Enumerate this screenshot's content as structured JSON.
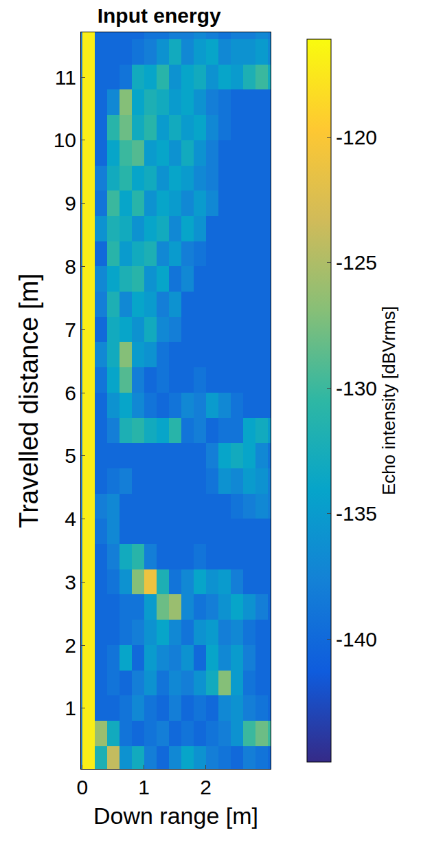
{
  "chart_data": {
    "type": "heatmap",
    "title": "Input energy",
    "x_label": "Down range [m]",
    "y_label": "Travelled distance [m]",
    "x": [
      0.1,
      0.3,
      0.5,
      0.7,
      0.9,
      1.1,
      1.3,
      1.5,
      1.7,
      1.9,
      2.1,
      2.3,
      2.5,
      2.7,
      2.9,
      3.1
    ],
    "y": [
      0.2,
      0.6,
      1.0,
      1.4,
      1.8,
      2.2,
      2.6,
      3.0,
      3.4,
      3.8,
      4.2,
      4.6,
      5.0,
      5.4,
      5.8,
      6.2,
      6.6,
      7.0,
      7.4,
      7.8,
      8.2,
      8.6,
      9.0,
      9.4,
      9.8,
      10.2,
      10.6,
      11.0,
      11.4,
      11.8
    ],
    "z": [
      [
        -117,
        -132,
        -124,
        -136,
        -133,
        -138,
        -140,
        -137,
        -134,
        -136,
        -138,
        -139,
        -140,
        -138,
        -139,
        -140
      ],
      [
        -117,
        -126,
        -133,
        -139,
        -140,
        -139,
        -138,
        -140,
        -139,
        -140,
        -139,
        -138,
        -136,
        -130,
        -128,
        -130
      ],
      [
        -117,
        -140,
        -140,
        -139,
        -137,
        -139,
        -140,
        -138,
        -140,
        -139,
        -140,
        -137,
        -136,
        -138,
        -139,
        -140
      ],
      [
        -117,
        -140,
        -139,
        -140,
        -138,
        -136,
        -139,
        -137,
        -138,
        -136,
        -133,
        -127,
        -135,
        -139,
        -140,
        -140
      ],
      [
        -117,
        -140,
        -139,
        -134,
        -140,
        -135,
        -137,
        -138,
        -136,
        -140,
        -134,
        -137,
        -135,
        -138,
        -140,
        -140
      ],
      [
        -117,
        -140,
        -140,
        -139,
        -138,
        -136,
        -134,
        -137,
        -139,
        -136,
        -135,
        -138,
        -137,
        -139,
        -140,
        -140
      ],
      [
        -117,
        -140,
        -140,
        -139,
        -139,
        -135,
        -128,
        -126,
        -137,
        -139,
        -138,
        -136,
        -134,
        -136,
        -138,
        -140
      ],
      [
        -117,
        -140,
        -139,
        -136,
        -127,
        -121,
        -132,
        -139,
        -137,
        -134,
        -136,
        -135,
        -138,
        -140,
        -140,
        -140
      ],
      [
        -117,
        -140,
        -138,
        -133,
        -131,
        -138,
        -140,
        -140,
        -140,
        -139,
        -140,
        -140,
        -140,
        -140,
        -140,
        -140
      ],
      [
        -117,
        -139,
        -137,
        -140,
        -140,
        -140,
        -140,
        -140,
        -140,
        -140,
        -140,
        -140,
        -140,
        -140,
        -140,
        -140
      ],
      [
        -117,
        -138,
        -137,
        -140,
        -140,
        -140,
        -140,
        -140,
        -140,
        -140,
        -140,
        -140,
        -139,
        -138,
        -137,
        -138
      ],
      [
        -117,
        -140,
        -139,
        -138,
        -140,
        -140,
        -140,
        -140,
        -140,
        -140,
        -139,
        -136,
        -137,
        -135,
        -136,
        -138
      ],
      [
        -117,
        -140,
        -140,
        -140,
        -140,
        -140,
        -140,
        -140,
        -140,
        -140,
        -138,
        -134,
        -133,
        -134,
        -137,
        -139
      ],
      [
        -117,
        -140,
        -138,
        -132,
        -131,
        -133,
        -134,
        -131,
        -139,
        -138,
        -140,
        -139,
        -139,
        -134,
        -133,
        -135
      ],
      [
        -117,
        -140,
        -136,
        -134,
        -137,
        -139,
        -140,
        -139,
        -137,
        -138,
        -135,
        -137,
        -139,
        -140,
        -140,
        -140
      ],
      [
        -117,
        -139,
        -134,
        -129,
        -138,
        -140,
        -139,
        -140,
        -140,
        -139,
        -140,
        -140,
        -140,
        -140,
        -140,
        -140
      ],
      [
        -117,
        -137,
        -133,
        -127,
        -135,
        -136,
        -139,
        -140,
        -140,
        -140,
        -140,
        -140,
        -140,
        -140,
        -140,
        -140
      ],
      [
        -117,
        -140,
        -133,
        -134,
        -136,
        -133,
        -137,
        -138,
        -140,
        -140,
        -140,
        -140,
        -140,
        -140,
        -140,
        -140
      ],
      [
        -117,
        -138,
        -132,
        -137,
        -134,
        -135,
        -138,
        -136,
        -140,
        -140,
        -140,
        -140,
        -140,
        -140,
        -140,
        -140
      ],
      [
        -117,
        -137,
        -134,
        -132,
        -131,
        -136,
        -134,
        -139,
        -137,
        -140,
        -140,
        -140,
        -140,
        -140,
        -140,
        -140
      ],
      [
        -117,
        -140,
        -131,
        -135,
        -133,
        -132,
        -137,
        -135,
        -138,
        -139,
        -140,
        -140,
        -140,
        -140,
        -140,
        -140
      ],
      [
        -117,
        -136,
        -132,
        -133,
        -136,
        -134,
        -133,
        -137,
        -134,
        -136,
        -140,
        -140,
        -140,
        -140,
        -140,
        -140
      ],
      [
        -117,
        -139,
        -130,
        -134,
        -131,
        -136,
        -134,
        -135,
        -137,
        -135,
        -137,
        -140,
        -140,
        -140,
        -140,
        -140
      ],
      [
        -117,
        -138,
        -133,
        -131,
        -134,
        -133,
        -136,
        -134,
        -135,
        -137,
        -138,
        -140,
        -140,
        -140,
        -140,
        -140
      ],
      [
        -117,
        -140,
        -134,
        -130,
        -129,
        -135,
        -134,
        -136,
        -133,
        -136,
        -138,
        -140,
        -140,
        -140,
        -140,
        -140
      ],
      [
        -117,
        -140,
        -131,
        -128,
        -133,
        -131,
        -135,
        -133,
        -135,
        -134,
        -137,
        -139,
        -140,
        -140,
        -140,
        -140
      ],
      [
        -117,
        -140,
        -137,
        -127,
        -134,
        -132,
        -133,
        -135,
        -134,
        -136,
        -138,
        -139,
        -140,
        -140,
        -140,
        -140
      ],
      [
        -117,
        -140,
        -140,
        -139,
        -133,
        -134,
        -131,
        -136,
        -134,
        -133,
        -136,
        -134,
        -135,
        -132,
        -130,
        -133
      ],
      [
        -117,
        -140,
        -140,
        -140,
        -139,
        -138,
        -136,
        -133,
        -137,
        -135,
        -134,
        -137,
        -136,
        -136,
        -135,
        -137
      ],
      [
        -117,
        -140,
        -140,
        -140,
        -140,
        -139,
        -139,
        -138,
        -138,
        -137,
        -138,
        -139,
        -138,
        -138,
        -137,
        -138
      ]
    ],
    "xlim": [
      -0.02,
      3.05
    ],
    "ylim": [
      0.04,
      11.71
    ],
    "xticks": [
      0,
      1,
      2
    ],
    "yticks": [
      1,
      2,
      3,
      4,
      5,
      6,
      7,
      8,
      9,
      10,
      11
    ],
    "colorbar": {
      "title": "Echo intensity [dBVrms]",
      "range": [
        -144.9,
        -116.1
      ],
      "ticks": [
        -140,
        -135,
        -130,
        -125,
        -120
      ]
    }
  }
}
